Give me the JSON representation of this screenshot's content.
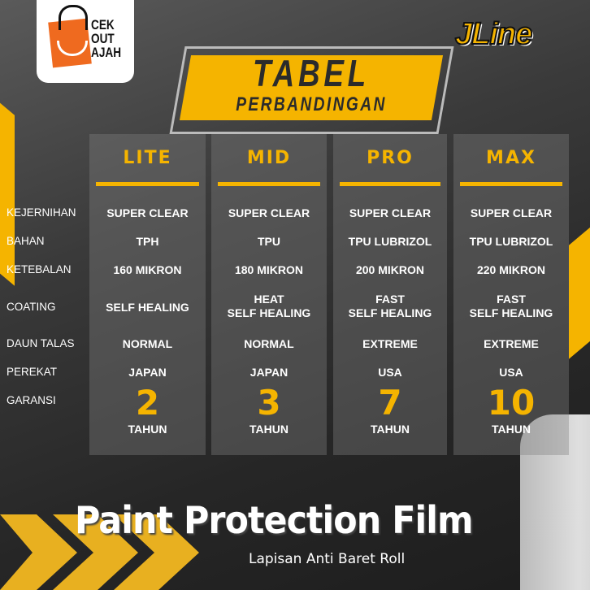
{
  "brand": {
    "left_logo": "CEK OUT AJAH",
    "right_logo": "JLine"
  },
  "title": {
    "line1": "TABEL",
    "line2": "PERBANDINGAN"
  },
  "columns": [
    "LITE",
    "MID",
    "PRO",
    "MAX"
  ],
  "rows": [
    {
      "label": "KEJERNIHAN",
      "values": [
        "SUPER CLEAR",
        "SUPER CLEAR",
        "SUPER CLEAR",
        "SUPER CLEAR"
      ]
    },
    {
      "label": "BAHAN",
      "values": [
        "TPH",
        "TPU",
        "TPU LUBRIZOL",
        "TPU LUBRIZOL"
      ]
    },
    {
      "label": "KETEBALAN",
      "values": [
        "160 MIKRON",
        "180 MIKRON",
        "200 MIKRON",
        "220 MIKRON"
      ]
    },
    {
      "label": "COATING",
      "values": [
        "SELF HEALING",
        "HEAT\nSELF HEALING",
        "FAST\nSELF HEALING",
        "FAST\nSELF HEALING"
      ]
    },
    {
      "label": "DAUN TALAS",
      "values": [
        "NORMAL",
        "NORMAL",
        "EXTREME",
        "EXTREME"
      ]
    },
    {
      "label": "PEREKAT",
      "values": [
        "JAPAN",
        "JAPAN",
        "USA",
        "USA"
      ]
    }
  ],
  "garansi": {
    "label": "GARANSI",
    "values": [
      "2",
      "3",
      "7",
      "10"
    ],
    "unit": "TAHUN"
  },
  "footer": {
    "title": "Paint Protection Film",
    "subtitle": "Lapisan Anti Baret Roll"
  },
  "colors": {
    "accent": "#f5b400",
    "background": "#2a2a2a",
    "text": "#ffffff"
  }
}
